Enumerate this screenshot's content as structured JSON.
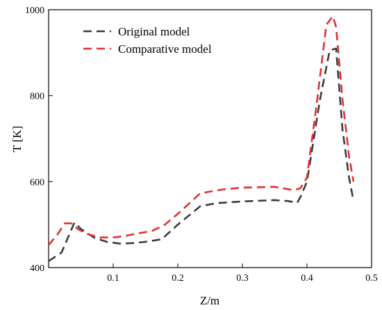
{
  "chart_data": {
    "type": "line",
    "title": "",
    "xlabel": "Z/m",
    "ylabel": "T [K]",
    "xlim": [
      0.0,
      0.5
    ],
    "ylim": [
      400,
      1000
    ],
    "xticks": [
      0.1,
      0.2,
      0.3,
      0.4,
      0.5
    ],
    "yticks": [
      400,
      600,
      800,
      1000
    ],
    "grid": false,
    "legend_position": "top-left",
    "series": [
      {
        "name": "Original model",
        "color": "#3a3a3a",
        "x": [
          0.0,
          0.02,
          0.03,
          0.04,
          0.05,
          0.07,
          0.09,
          0.11,
          0.13,
          0.15,
          0.175,
          0.2,
          0.235,
          0.26,
          0.3,
          0.35,
          0.37,
          0.385,
          0.39,
          0.4,
          0.42,
          0.435,
          0.445,
          0.455,
          0.465,
          0.472
        ],
        "y": [
          415,
          435,
          470,
          505,
          490,
          470,
          460,
          456,
          457,
          460,
          466,
          500,
          543,
          550,
          554,
          557,
          555,
          551,
          565,
          600,
          790,
          905,
          910,
          720,
          610,
          555
        ]
      },
      {
        "name": "Comparative model",
        "color": "#e03030",
        "x": [
          0.0,
          0.015,
          0.025,
          0.035,
          0.045,
          0.06,
          0.08,
          0.1,
          0.12,
          0.14,
          0.16,
          0.18,
          0.2,
          0.235,
          0.27,
          0.3,
          0.35,
          0.38,
          0.39,
          0.4,
          0.415,
          0.43,
          0.44,
          0.445,
          0.455,
          0.465,
          0.472
        ],
        "y": [
          452,
          480,
          503,
          503,
          490,
          478,
          470,
          470,
          474,
          480,
          485,
          500,
          525,
          573,
          582,
          586,
          588,
          580,
          585,
          610,
          780,
          965,
          985,
          960,
          790,
          660,
          600
        ]
      }
    ]
  }
}
